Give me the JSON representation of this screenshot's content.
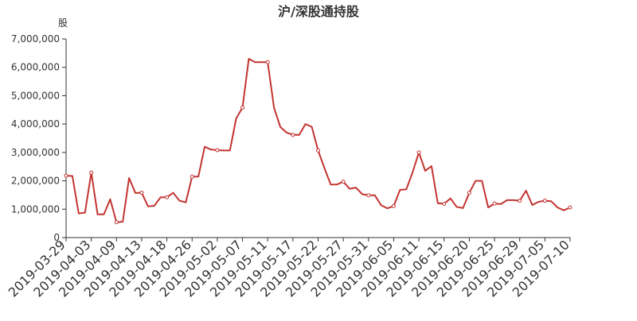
{
  "chart_data": {
    "type": "line",
    "title": "沪/深股通持股",
    "ylabel": "股",
    "xlabel": "",
    "ylim": [
      0,
      7000000
    ],
    "ytick_labels": [
      "0",
      "1,000,000",
      "2,000,000",
      "3,000,000",
      "4,000,000",
      "5,000,000",
      "6,000,000",
      "7,000,000"
    ],
    "x_tick_labels": [
      "2019-03-29",
      "2019-04-03",
      "2019-04-09",
      "2019-04-13",
      "2019-04-18",
      "2019-04-26",
      "2019-05-02",
      "2019-05-07",
      "2019-05-11",
      "2019-05-17",
      "2019-05-22",
      "2019-05-27",
      "2019-05-31",
      "2019-06-05",
      "2019-06-11",
      "2019-06-15",
      "2019-06-20",
      "2019-06-25",
      "2019-06-29",
      "2019-07-05",
      "2019-07-10"
    ],
    "grid": false,
    "legend": "none",
    "colors": {
      "line": "#c23531",
      "axis": "#333333"
    },
    "series": [
      {
        "values": [
          2180000,
          2170000,
          850000,
          880000,
          2290000,
          820000,
          820000,
          1350000,
          540000,
          560000,
          2100000,
          1570000,
          1580000,
          1100000,
          1120000,
          1420000,
          1420000,
          1580000,
          1300000,
          1240000,
          2150000,
          2150000,
          3200000,
          3100000,
          3080000,
          3070000,
          3070000,
          4200000,
          4580000,
          6300000,
          6180000,
          6180000,
          6180000,
          4580000,
          3900000,
          3700000,
          3620000,
          3620000,
          4000000,
          3900000,
          3070000,
          2450000,
          1870000,
          1870000,
          1970000,
          1720000,
          1760000,
          1530000,
          1490000,
          1490000,
          1140000,
          1030000,
          1110000,
          1680000,
          1700000,
          2300000,
          3000000,
          2350000,
          2520000,
          1210000,
          1190000,
          1380000,
          1080000,
          1040000,
          1580000,
          2000000,
          2000000,
          1060000,
          1200000,
          1180000,
          1320000,
          1320000,
          1300000,
          1650000,
          1150000,
          1260000,
          1300000,
          1280000,
          1060000,
          960000,
          1060000
        ]
      }
    ]
  }
}
